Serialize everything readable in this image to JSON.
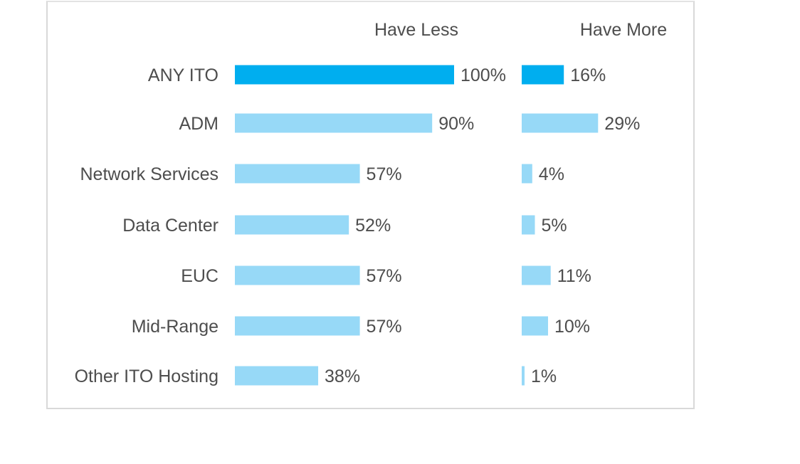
{
  "chart_data": {
    "type": "bar",
    "orientation": "horizontal",
    "column_headers": [
      "Have Less",
      "Have More"
    ],
    "categories": [
      "ANY ITO",
      "ADM",
      "Network Services",
      "Data Center",
      "EUC",
      "Mid-Range",
      "Other ITO Hosting"
    ],
    "series": [
      {
        "name": "Have Less",
        "values": [
          100,
          90,
          57,
          52,
          57,
          57,
          38
        ],
        "labels": [
          "100%",
          "90%",
          "57%",
          "52%",
          "57%",
          "57%",
          "38%"
        ]
      },
      {
        "name": "Have More",
        "values": [
          16,
          29,
          4,
          5,
          11,
          10,
          1
        ],
        "labels": [
          "16%",
          "29%",
          "4%",
          "5%",
          "11%",
          "10%",
          "1%"
        ]
      }
    ],
    "unit": "%",
    "highlight_category": "ANY ITO",
    "colors": {
      "highlight": "#00aeef",
      "bar": "#97d9f7",
      "text": "#4d4d4d",
      "border": "#d9d9d9"
    },
    "grid": false,
    "legend": "none"
  }
}
